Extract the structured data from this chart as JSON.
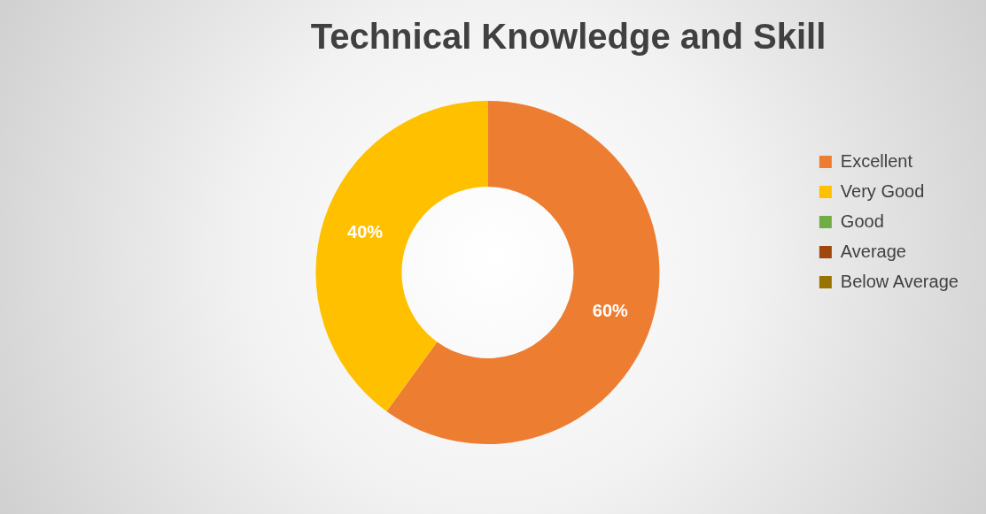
{
  "chart_data": {
    "type": "donut",
    "title": "Technical Knowledge and Skill",
    "categories": [
      "Excellent",
      "Very Good",
      "Good",
      "Average",
      "Below Average"
    ],
    "values": [
      60,
      40,
      0,
      0,
      0
    ],
    "colors": [
      "#ed7d31",
      "#ffc000",
      "#70ad47",
      "#9e480e",
      "#997300"
    ],
    "value_labels": [
      "60%",
      "40%",
      null,
      null,
      null
    ],
    "legend": "right"
  }
}
